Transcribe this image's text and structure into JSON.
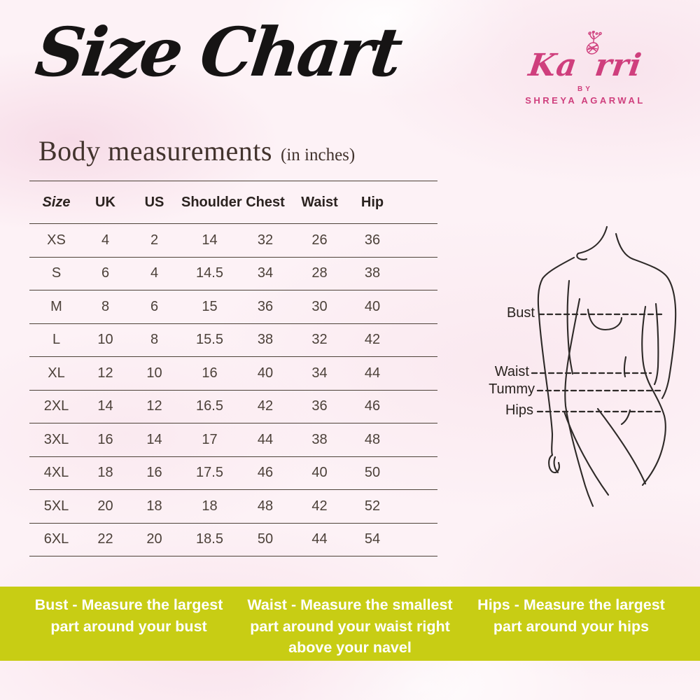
{
  "page": {
    "title": "Size Chart",
    "section_heading": "Body measurements",
    "section_note": "(in inches)"
  },
  "brand": {
    "name": "Kaorri",
    "name_parts": [
      "Ka",
      "rri"
    ],
    "by_label": "BY",
    "owner": "SHREYA AGARWAL",
    "accent_color": "#cf3f7d"
  },
  "chart_data": {
    "type": "table",
    "title": "Body measurements (in inches)",
    "columns": [
      "Size",
      "UK",
      "US",
      "Shoulder",
      "Chest",
      "Waist",
      "Hip"
    ],
    "rows": [
      [
        "XS",
        "4",
        "2",
        "14",
        "32",
        "26",
        "36"
      ],
      [
        "S",
        "6",
        "4",
        "14.5",
        "34",
        "28",
        "38"
      ],
      [
        "M",
        "8",
        "6",
        "15",
        "36",
        "30",
        "40"
      ],
      [
        "L",
        "10",
        "8",
        "15.5",
        "38",
        "32",
        "42"
      ],
      [
        "XL",
        "12",
        "10",
        "16",
        "40",
        "34",
        "44"
      ],
      [
        "2XL",
        "14",
        "12",
        "16.5",
        "42",
        "36",
        "46"
      ],
      [
        "3XL",
        "16",
        "14",
        "17",
        "44",
        "38",
        "48"
      ],
      [
        "4XL",
        "18",
        "16",
        "17.5",
        "46",
        "40",
        "50"
      ],
      [
        "5XL",
        "20",
        "18",
        "18",
        "48",
        "42",
        "52"
      ],
      [
        "6XL",
        "22",
        "20",
        "18.5",
        "50",
        "44",
        "54"
      ]
    ]
  },
  "figure": {
    "labels": {
      "bust": "Bust",
      "waist": "Waist",
      "tummy": "Tummy",
      "hips": "Hips"
    }
  },
  "footer": {
    "background_color": "#c8cd14",
    "text_color": "#ffffff",
    "items": [
      {
        "term": "Bust",
        "separator": "-",
        "description": "Measure the largest part around your bust"
      },
      {
        "term": "Waist",
        "separator": "-",
        "description": "Measure the smallest part around your waist right above your navel"
      },
      {
        "term": "Hips",
        "separator": "-",
        "description": "Measure the largest part around your hips"
      }
    ]
  }
}
